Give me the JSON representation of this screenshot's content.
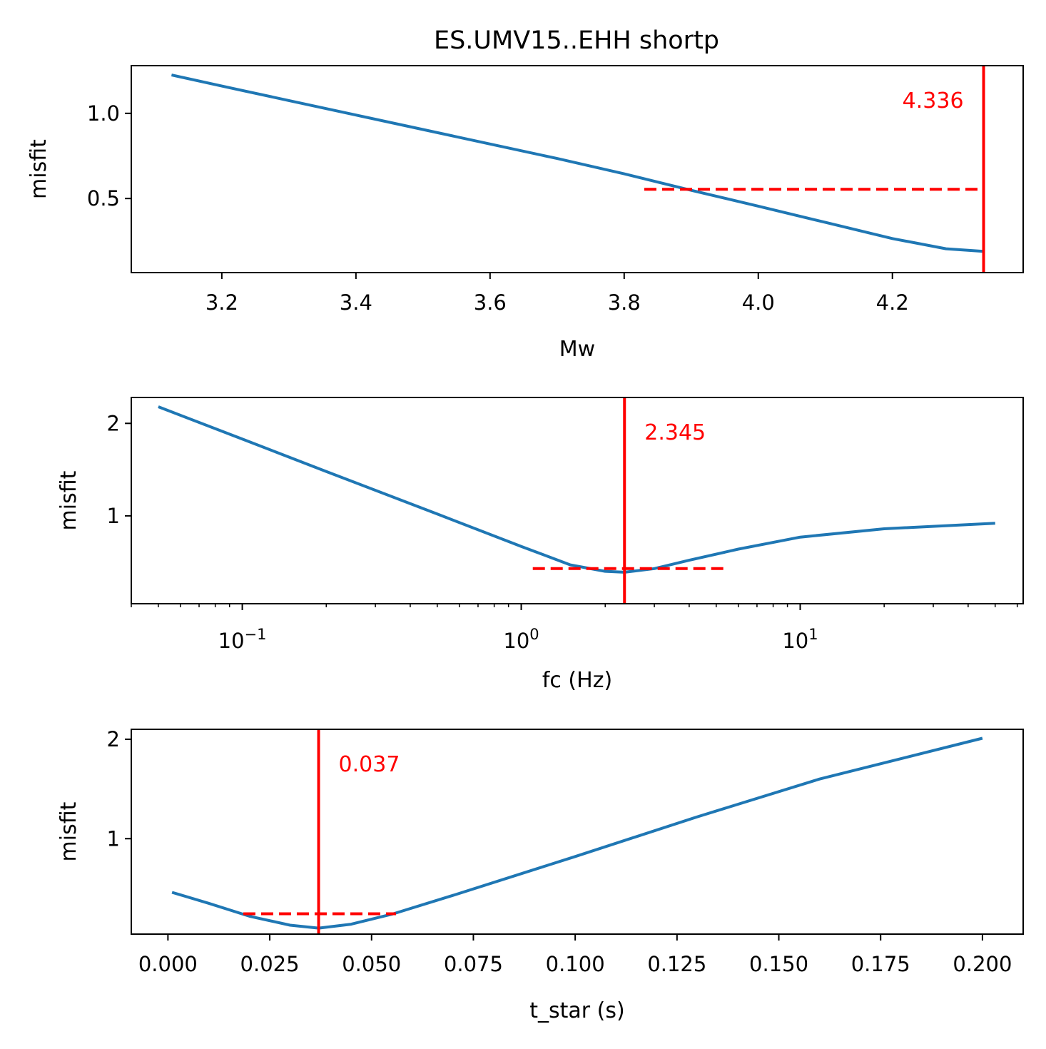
{
  "title": "ES.UMV15..EHH shortp",
  "colors": {
    "curve": "#1f77b4",
    "marker": "#ff0000",
    "axes": "#000000"
  },
  "chart_data": [
    {
      "type": "line",
      "xlabel": "Mw",
      "ylabel": "misfit",
      "xscale": "linear",
      "xlim": [
        3.065,
        4.395
      ],
      "ylim": [
        0.065,
        1.28
      ],
      "xticks": [
        3.2,
        3.4,
        3.6,
        3.8,
        4.0,
        4.2
      ],
      "xtick_labels": [
        "3.2",
        "3.4",
        "3.6",
        "3.8",
        "4.0",
        "4.2"
      ],
      "yticks": [
        0.5,
        1.0
      ],
      "ytick_labels": [
        "0.5",
        "1.0"
      ],
      "x": [
        3.125,
        3.2,
        3.3,
        3.4,
        3.5,
        3.6,
        3.7,
        3.8,
        3.9,
        4.0,
        4.1,
        4.2,
        4.28,
        4.336
      ],
      "y": [
        1.225,
        1.16,
        1.075,
        0.99,
        0.905,
        0.82,
        0.735,
        0.645,
        0.548,
        0.455,
        0.36,
        0.265,
        0.205,
        0.19
      ],
      "best_value": 4.336,
      "best_label": "4.336",
      "interval": {
        "x_start": 3.83,
        "x_end": 4.336,
        "y": 0.554
      },
      "label_anchor": "end"
    },
    {
      "type": "line",
      "xlabel": "fc (Hz)",
      "ylabel": "misfit",
      "xscale": "log",
      "xlim": [
        0.04,
        63
      ],
      "ylim": [
        0.05,
        2.28
      ],
      "xticks": [
        0.1,
        1,
        10
      ],
      "xtick_labels": [
        {
          "base": "10",
          "exp": "−1"
        },
        {
          "base": "10",
          "exp": "0"
        },
        {
          "base": "10",
          "exp": "1"
        }
      ],
      "yticks": [
        1,
        2
      ],
      "ytick_labels": [
        "1",
        "2"
      ],
      "x": [
        0.05,
        0.1,
        0.2,
        0.5,
        1.0,
        1.5,
        2.0,
        2.345,
        3.0,
        4.0,
        6.0,
        10.0,
        20.0,
        50.0
      ],
      "y": [
        2.18,
        1.83,
        1.48,
        1.02,
        0.67,
        0.47,
        0.4,
        0.39,
        0.43,
        0.52,
        0.64,
        0.77,
        0.86,
        0.92
      ],
      "best_value": 2.345,
      "best_label": "2.345",
      "interval": {
        "x_start": 1.1,
        "x_end": 5.4,
        "y": 0.43
      },
      "label_anchor": "start"
    },
    {
      "type": "line",
      "xlabel": "t_star (s)",
      "ylabel": "misfit",
      "xscale": "linear",
      "xlim": [
        -0.009,
        0.21
      ],
      "ylim": [
        0.04,
        2.1
      ],
      "xticks": [
        0.0,
        0.025,
        0.05,
        0.075,
        0.1,
        0.125,
        0.15,
        0.175,
        0.2
      ],
      "xtick_labels": [
        "0.000",
        "0.025",
        "0.050",
        "0.075",
        "0.100",
        "0.125",
        "0.150",
        "0.175",
        "0.200"
      ],
      "yticks": [
        1,
        2
      ],
      "ytick_labels": [
        "1",
        "2"
      ],
      "x": [
        0.001,
        0.01,
        0.02,
        0.03,
        0.037,
        0.045,
        0.055,
        0.07,
        0.1,
        0.13,
        0.16,
        0.2
      ],
      "y": [
        0.46,
        0.35,
        0.22,
        0.13,
        0.1,
        0.14,
        0.24,
        0.43,
        0.82,
        1.22,
        1.6,
        2.01
      ],
      "best_value": 0.037,
      "best_label": "0.037",
      "interval": {
        "x_start": 0.0185,
        "x_end": 0.056,
        "y": 0.245
      },
      "label_anchor": "start"
    }
  ]
}
